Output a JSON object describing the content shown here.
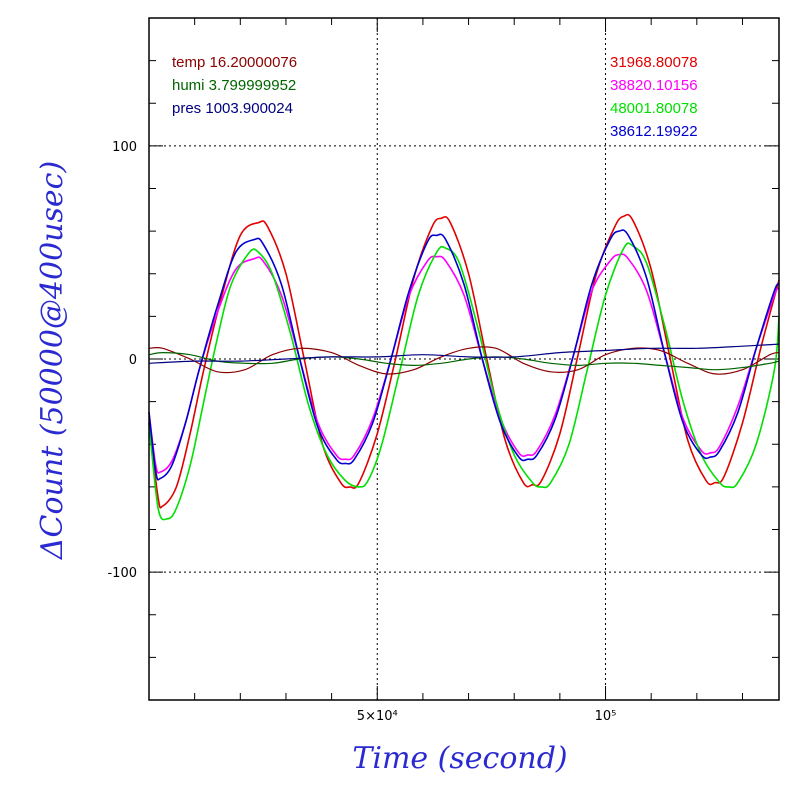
{
  "chart_data": {
    "type": "line",
    "xlabel": "Time (second)",
    "ylabel": "ΔCount (50000@400usec)",
    "xlim": [
      0,
      138000
    ],
    "ylim": [
      -160,
      160
    ],
    "x_ticks": [
      {
        "value": 50000,
        "label": "5×10⁴"
      },
      {
        "value": 100000,
        "label": "10⁵"
      }
    ],
    "y_ticks": [
      {
        "value": 100,
        "label": "100"
      },
      {
        "value": 0,
        "label": "0"
      },
      {
        "value": -100,
        "label": "-100"
      }
    ],
    "grid": true,
    "axis_color": "#2a2ad0",
    "env_legend": [
      {
        "label": "temp 16.20000076",
        "color": "#8b0000"
      },
      {
        "label": "humi 3.799999952",
        "color": "#006400"
      },
      {
        "label": "pres 1003.900024",
        "color": "#000080"
      }
    ],
    "count_legend": [
      {
        "label": "31968.80078",
        "color": "#e00000"
      },
      {
        "label": "38820.10156",
        "color": "#ff00ff"
      },
      {
        "label": "48001.80078",
        "color": "#00e000"
      },
      {
        "label": "38612.19922",
        "color": "#0000d0"
      }
    ],
    "series": [
      {
        "color": "#e00000",
        "x": [
          0,
          2000,
          3000,
          6000,
          9000,
          12000,
          16000,
          20000,
          24000,
          26000,
          30000,
          34000,
          38000,
          42000,
          44000,
          46000,
          50000,
          54000,
          58000,
          62000,
          64000,
          66000,
          70000,
          74000,
          78000,
          82000,
          84000,
          86000,
          90000,
          94000,
          98000,
          102000,
          104000,
          106000,
          110000,
          114000,
          118000,
          122000,
          124000,
          126000,
          130000,
          134000,
          138000
        ],
        "y": [
          -30,
          -65,
          -69,
          -60,
          -35,
          -5,
          30,
          58,
          64,
          62,
          40,
          0,
          -40,
          -58,
          -60,
          -58,
          -35,
          0,
          38,
          62,
          66,
          64,
          40,
          0,
          -38,
          -58,
          -59,
          -57,
          -35,
          2,
          40,
          62,
          67,
          65,
          42,
          2,
          -38,
          -57,
          -58,
          -55,
          -30,
          5,
          37
        ]
      },
      {
        "color": "#ff00ff",
        "x": [
          0,
          1500,
          2500,
          5000,
          8000,
          11000,
          15000,
          19000,
          23000,
          25000,
          29000,
          33000,
          37000,
          41000,
          43000,
          45000,
          49000,
          53000,
          57000,
          61000,
          63000,
          65000,
          69000,
          73000,
          77000,
          81000,
          83000,
          85000,
          89000,
          93000,
          97000,
          101000,
          103000,
          105000,
          109000,
          113000,
          117000,
          121000,
          123000,
          125000,
          129000,
          133000,
          137000,
          138000
        ],
        "y": [
          -25,
          -50,
          -53,
          -48,
          -30,
          -5,
          22,
          42,
          47,
          46,
          30,
          0,
          -30,
          -45,
          -47,
          -45,
          -28,
          0,
          30,
          46,
          48,
          46,
          30,
          0,
          -28,
          -44,
          -45,
          -43,
          -26,
          2,
          32,
          46,
          49,
          47,
          32,
          2,
          -28,
          -43,
          -44,
          -41,
          -22,
          5,
          30,
          33
        ]
      },
      {
        "color": "#00e000",
        "x": [
          0,
          2000,
          4000,
          6000,
          9000,
          12000,
          15000,
          18000,
          22000,
          24000,
          27000,
          31000,
          35000,
          39000,
          43000,
          46000,
          48000,
          51000,
          55000,
          59000,
          63000,
          65000,
          68000,
          72000,
          76000,
          80000,
          84000,
          86000,
          88000,
          92000,
          96000,
          100000,
          104000,
          106000,
          109000,
          113000,
          117000,
          121000,
          125000,
          127000,
          129000,
          133000,
          137000,
          138000
        ],
        "y": [
          -30,
          -70,
          -75,
          -70,
          -50,
          -20,
          10,
          35,
          50,
          50,
          40,
          12,
          -22,
          -45,
          -57,
          -60,
          -57,
          -40,
          -5,
          30,
          50,
          52,
          45,
          15,
          -20,
          -45,
          -58,
          -60,
          -58,
          -40,
          -5,
          30,
          52,
          53,
          45,
          15,
          -20,
          -45,
          -58,
          -60,
          -58,
          -40,
          -5,
          20
        ]
      },
      {
        "color": "#0000d0",
        "x": [
          0,
          1500,
          2500,
          5000,
          8000,
          11000,
          15000,
          19000,
          23000,
          25000,
          29000,
          33000,
          37000,
          41000,
          43000,
          45000,
          49000,
          53000,
          57000,
          61000,
          63000,
          65000,
          69000,
          73000,
          77000,
          81000,
          83000,
          85000,
          89000,
          93000,
          97000,
          101000,
          103000,
          105000,
          109000,
          113000,
          117000,
          121000,
          123000,
          125000,
          129000,
          133000,
          137000,
          138000
        ],
        "y": [
          -25,
          -53,
          -56,
          -50,
          -30,
          -5,
          25,
          50,
          56,
          54,
          35,
          0,
          -32,
          -47,
          -49,
          -47,
          -30,
          0,
          32,
          55,
          58,
          56,
          35,
          0,
          -30,
          -46,
          -47,
          -45,
          -28,
          2,
          35,
          56,
          60,
          58,
          38,
          2,
          -30,
          -45,
          -46,
          -43,
          -25,
          5,
          32,
          35
        ]
      },
      {
        "color": "#8b0000",
        "x": [
          0,
          3000,
          9000,
          15000,
          21000,
          27000,
          33000,
          40000,
          46000,
          52000,
          58000,
          64000,
          70000,
          76000,
          82000,
          88000,
          94000,
          100000,
          106000,
          112000,
          118000,
          124000,
          130000,
          136000,
          138000
        ],
        "y": [
          5,
          5,
          0,
          -6,
          -5,
          2,
          5,
          3,
          -3,
          -7,
          -5,
          1,
          5,
          5,
          -2,
          -6,
          -5,
          2,
          5,
          4,
          -2,
          -7,
          -5,
          2,
          3
        ]
      },
      {
        "color": "#006400",
        "x": [
          0,
          3000,
          9000,
          15000,
          21000,
          27000,
          33000,
          40000,
          46000,
          52000,
          58000,
          64000,
          70000,
          76000,
          82000,
          88000,
          94000,
          100000,
          106000,
          112000,
          118000,
          124000,
          130000,
          136000,
          138000
        ],
        "y": [
          2,
          3,
          2,
          -1,
          -2,
          -2,
          0,
          1,
          0,
          -2,
          -3,
          -2,
          0,
          1,
          0,
          -2,
          -3,
          -2,
          -2,
          -3,
          -4,
          -5,
          -4,
          -2,
          -1
        ]
      },
      {
        "color": "#000080",
        "x": [
          0,
          10000,
          20000,
          30000,
          40000,
          50000,
          60000,
          70000,
          80000,
          90000,
          100000,
          110000,
          120000,
          130000,
          138000
        ],
        "y": [
          -2,
          -1,
          -1,
          0,
          1,
          1,
          2,
          1,
          1,
          3,
          4,
          5,
          5,
          6,
          7
        ]
      }
    ]
  }
}
